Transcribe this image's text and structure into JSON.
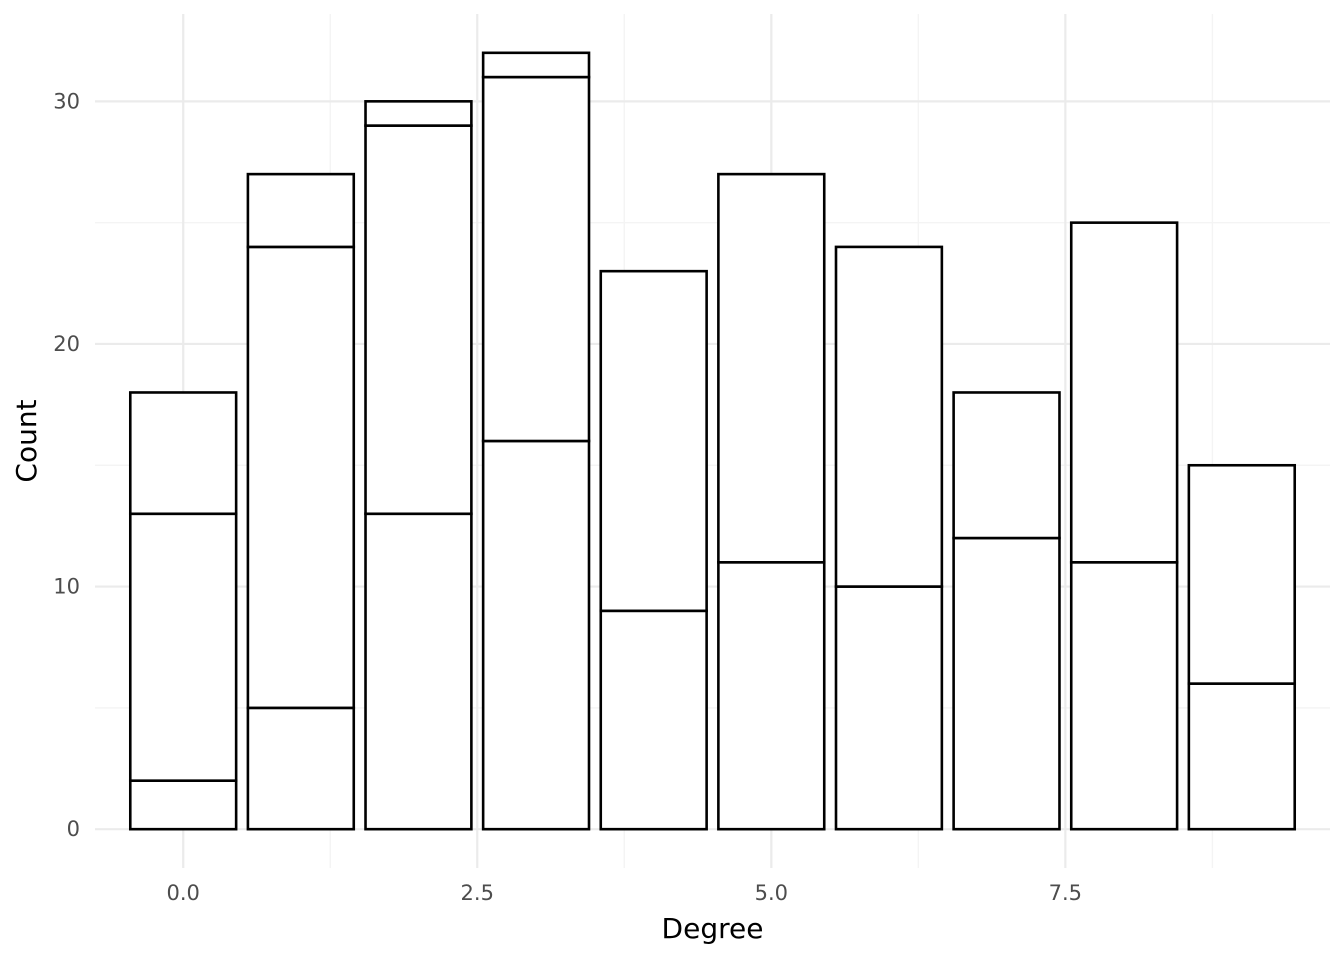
{
  "chart_data": {
    "type": "bar",
    "stacked": true,
    "xlabel": "Degree",
    "ylabel": "Count",
    "x": [
      0,
      1,
      2,
      3,
      4,
      5,
      6,
      7,
      8,
      9
    ],
    "stack_boundaries": [
      [
        2,
        13,
        18
      ],
      [
        5,
        24,
        27
      ],
      [
        13,
        29,
        30
      ],
      [
        16,
        31,
        32
      ],
      [
        9,
        23
      ],
      [
        11,
        27
      ],
      [
        10,
        24
      ],
      [
        12,
        18
      ],
      [
        11,
        25
      ],
      [
        6,
        15
      ]
    ],
    "totals": [
      18,
      27,
      30,
      32,
      23,
      27,
      24,
      18,
      25,
      15
    ],
    "xlim": [
      -0.75,
      9.75
    ],
    "ylim": [
      -1.6,
      33.6
    ],
    "x_ticks": [
      0,
      2.5,
      5,
      7.5
    ],
    "x_tick_labels": [
      "0.0",
      "2.5",
      "5.0",
      "7.5"
    ],
    "y_ticks": [
      0,
      10,
      20,
      30
    ],
    "y_tick_labels": [
      "0",
      "10",
      "20",
      "30"
    ],
    "grid": true,
    "legend": "none",
    "bar_fill": "#ffffff",
    "bar_outline": "#000000"
  }
}
